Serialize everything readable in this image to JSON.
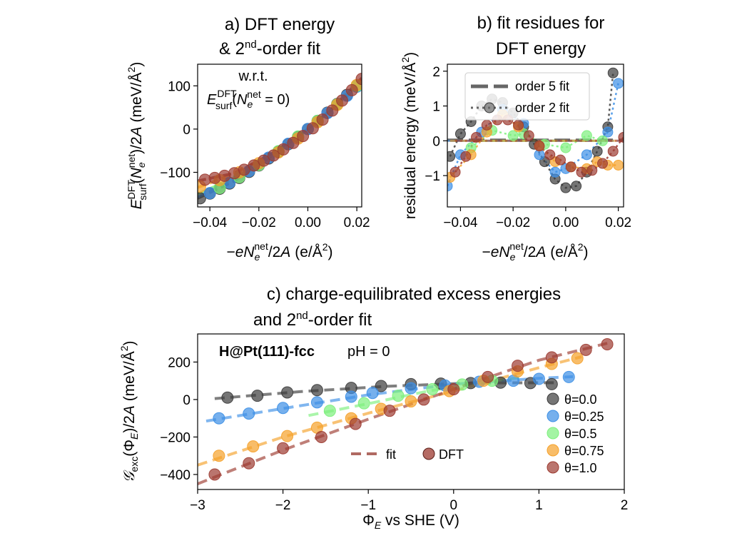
{
  "chart_data": [
    {
      "id": "a",
      "type": "scatter",
      "title": [
        "a) DFT energy",
        "& 2nd-order fit"
      ],
      "xlabel": "−eNe^net/2A (e/Å^2)",
      "ylabel": "E_surf^DFT(Ne^net)/2A (meV/Å^2)",
      "annotation": [
        "w.r.t.",
        "E_surf^DFT(Ne^net = 0)"
      ],
      "xlim": [
        -0.045,
        0.022
      ],
      "ylim": [
        -180,
        150
      ],
      "xticks": [
        -0.04,
        -0.02,
        0.0,
        0.02
      ],
      "xtick_labels": [
        "−0.04",
        "−0.02",
        "0.00",
        "0.02"
      ],
      "yticks": [
        -100,
        0,
        100
      ],
      "ytick_labels": [
        "−100",
        "0",
        "100"
      ],
      "grid": false,
      "series": [
        {
          "name": "θ=0.0",
          "color": "#3a3a3a",
          "x": [
            -0.044,
            -0.04,
            -0.036,
            -0.032,
            -0.028,
            -0.024,
            -0.02,
            -0.016,
            -0.012,
            -0.008,
            -0.004,
            0.0,
            0.004,
            0.008,
            0.012,
            0.016,
            0.02
          ],
          "y": [
            -160,
            -149,
            -138,
            -126,
            -113,
            -99,
            -84,
            -68,
            -52,
            -35,
            -18,
            0,
            19,
            38,
            58,
            79,
            100
          ]
        },
        {
          "name": "θ=0.25",
          "color": "#3c8fe6",
          "x": [
            -0.04,
            -0.032,
            -0.024,
            -0.016,
            -0.008,
            0.0,
            0.008,
            0.016,
            0.02
          ],
          "y": [
            -148,
            -124,
            -97,
            -66,
            -34,
            0,
            37,
            77,
            98
          ]
        },
        {
          "name": "θ=0.5",
          "color": "#7cf07c",
          "x": [
            -0.036,
            -0.028,
            -0.02,
            -0.012,
            -0.004,
            0.004,
            0.012,
            0.02
          ],
          "y": [
            -136,
            -111,
            -83,
            -51,
            -17,
            19,
            57,
            100
          ]
        },
        {
          "name": "θ=0.75",
          "color": "#f5a12a",
          "x": [
            -0.044,
            -0.036,
            -0.028,
            -0.02,
            -0.012,
            -0.004,
            0.004,
            0.012,
            0.02
          ],
          "y": [
            -133,
            -118,
            -100,
            -79,
            -54,
            -22,
            16,
            56,
            102
          ]
        },
        {
          "name": "θ=1.0",
          "color": "#9c3a30",
          "x": [
            -0.042,
            -0.038,
            -0.034,
            -0.03,
            -0.026,
            -0.022,
            -0.018,
            -0.014,
            -0.01,
            -0.006,
            -0.002,
            0.002,
            0.006,
            0.01,
            0.014,
            0.018,
            0.022
          ],
          "y": [
            -117,
            -113,
            -108,
            -102,
            -94,
            -84,
            -73,
            -61,
            -47,
            -32,
            -16,
            2,
            22,
            43,
            66,
            90,
            116
          ]
        }
      ],
      "fit_curves": [
        {
          "color": "#3a3a3a",
          "x": [
            -0.045,
            -0.03,
            -0.015,
            0.0,
            0.01,
            0.022
          ],
          "y": [
            -160,
            -120,
            -63,
            0,
            46,
            108
          ]
        },
        {
          "color": "#3c8fe6",
          "x": [
            -0.045,
            -0.03,
            -0.015,
            0.0,
            0.01,
            0.022
          ],
          "y": [
            -157,
            -118,
            -61,
            0,
            47,
            110
          ]
        },
        {
          "color": "#7cf07c",
          "x": [
            -0.045,
            -0.03,
            -0.015,
            0.0,
            0.01,
            0.022
          ],
          "y": [
            -150,
            -113,
            -60,
            0,
            47,
            112
          ]
        },
        {
          "color": "#f5a12a",
          "x": [
            -0.045,
            -0.03,
            -0.015,
            0.0,
            0.01,
            0.022
          ],
          "y": [
            -135,
            -104,
            -58,
            0,
            47,
            114
          ]
        },
        {
          "color": "#9c3a30",
          "x": [
            -0.045,
            -0.03,
            -0.015,
            0.0,
            0.01,
            0.022
          ],
          "y": [
            -120,
            -102,
            -58,
            0,
            48,
            118
          ]
        }
      ]
    },
    {
      "id": "b",
      "type": "scatter",
      "title": [
        "b) fit residues for",
        "DFT energy"
      ],
      "xlabel": "−eNe^net/2A (e/Å^2)",
      "ylabel": "residual energy (meV/Å^2)",
      "xlim": [
        -0.045,
        0.022
      ],
      "ylim": [
        -1.9,
        2.2
      ],
      "xticks": [
        -0.04,
        -0.02,
        0.0,
        0.02
      ],
      "xtick_labels": [
        "−0.04",
        "−0.02",
        "0.00",
        "0.02"
      ],
      "yticks": [
        -1,
        0,
        1,
        2
      ],
      "ytick_labels": [
        "−1",
        "0",
        "1",
        "2"
      ],
      "grid": false,
      "legend": {
        "position": "upper-left",
        "entries": [
          {
            "label": "order 5 fit",
            "style": "dashed"
          },
          {
            "label": "order 2 fit",
            "style": "dotted-marker"
          }
        ]
      },
      "series": [
        {
          "name": "θ=0.0",
          "color": "#3a3a3a",
          "x": [
            -0.044,
            -0.04,
            -0.036,
            -0.032,
            -0.028,
            -0.024,
            -0.02,
            -0.016,
            -0.012,
            -0.008,
            -0.004,
            0.0,
            0.004,
            0.008,
            0.012,
            0.016,
            0.018
          ],
          "y": [
            -0.45,
            0.2,
            0.55,
            1.0,
            1.2,
            1.1,
            0.8,
            0.4,
            -0.1,
            -0.6,
            -1.1,
            -1.35,
            -1.3,
            -0.9,
            -0.3,
            0.4,
            1.95
          ]
        },
        {
          "name": "θ=0.25",
          "color": "#3c8fe6",
          "x": [
            -0.045,
            -0.04,
            -0.032,
            -0.024,
            -0.016,
            -0.01,
            -0.004,
            0.0,
            0.008,
            0.016,
            0.02
          ],
          "y": [
            -1.3,
            -0.4,
            0.25,
            0.9,
            0.5,
            -0.4,
            -0.9,
            -0.8,
            -0.4,
            0.25,
            1.65
          ]
        },
        {
          "name": "θ=0.5",
          "color": "#7cf07c",
          "x": [
            -0.036,
            -0.028,
            -0.02,
            -0.016,
            -0.008,
            0.0,
            0.008,
            0.014
          ],
          "y": [
            -0.2,
            0.3,
            0.15,
            0.2,
            -0.1,
            -0.2,
            0.15,
            0.0
          ]
        },
        {
          "name": "θ=0.75",
          "color": "#f5a12a",
          "x": [
            -0.044,
            -0.036,
            -0.03,
            -0.024,
            -0.018,
            -0.01,
            -0.004,
            0.002,
            0.008,
            0.012,
            0.016,
            0.02
          ],
          "y": [
            -1.05,
            -0.4,
            0.25,
            0.75,
            0.4,
            -0.15,
            -0.6,
            -0.75,
            -0.8,
            -0.6,
            -0.7,
            -0.7
          ]
        },
        {
          "name": "θ=1.0",
          "color": "#9c3a30",
          "x": [
            -0.042,
            -0.038,
            -0.034,
            -0.03,
            -0.026,
            -0.022,
            -0.018,
            -0.014,
            -0.01,
            -0.006,
            -0.002,
            0.002,
            0.006,
            0.01,
            0.014,
            0.018,
            0.022
          ],
          "y": [
            -0.9,
            -0.45,
            0.1,
            0.45,
            0.6,
            0.6,
            0.45,
            0.15,
            -0.15,
            -0.4,
            -0.55,
            -0.75,
            -0.9,
            -0.85,
            -0.65,
            -0.3,
            0.1
          ]
        }
      ]
    },
    {
      "id": "c",
      "type": "scatter",
      "title": [
        "c) charge-equilibrated excess energies",
        "and 2nd-order fit"
      ],
      "xlabel": "ΦE vs SHE (V)",
      "ylabel": "Gexc(ΦE)/2A (meV/Å^2)",
      "annotation": [
        "H@Pt(111)-fcc",
        "pH = 0"
      ],
      "xlim": [
        -3,
        2
      ],
      "ylim": [
        -480,
        350
      ],
      "xticks": [
        -3,
        -2,
        -1,
        0,
        1,
        2
      ],
      "xtick_labels": [
        "−3",
        "−2",
        "−1",
        "0",
        "1",
        "2"
      ],
      "yticks": [
        -400,
        -200,
        0,
        200
      ],
      "ytick_labels": [
        "−400",
        "−200",
        "0",
        "200"
      ],
      "grid": false,
      "legend_series": [
        "θ=0.0",
        "θ=0.25",
        "θ=0.5",
        "θ=0.75",
        "θ=1.0"
      ],
      "legend_style": [
        {
          "label": "fit",
          "style": "dashed"
        },
        {
          "label": "DFT",
          "style": "marker"
        }
      ],
      "series": [
        {
          "name": "θ=0.0",
          "color": "#3a3a3a",
          "x": [
            -2.65,
            -2.3,
            -1.95,
            -1.6,
            -1.2,
            -0.85,
            -0.5,
            -0.15,
            0.2,
            0.55,
            0.9,
            1.15
          ],
          "y": [
            10,
            20,
            38,
            50,
            62,
            72,
            82,
            85,
            88,
            90,
            88,
            82
          ]
        },
        {
          "name": "θ=0.25",
          "color": "#3c8fe6",
          "x": [
            -2.75,
            -2.4,
            -2.0,
            -1.6,
            -1.2,
            -0.95,
            -0.5,
            -0.1,
            0.3,
            0.7,
            1.0,
            1.35
          ],
          "y": [
            -100,
            -75,
            -45,
            -15,
            15,
            35,
            60,
            75,
            95,
            100,
            110,
            120
          ]
        },
        {
          "name": "θ=0.5",
          "color": "#7cf07c",
          "x": [
            -1.45,
            -1.05,
            -0.65,
            -0.25,
            0.1,
            0.45
          ],
          "y": [
            -60,
            -20,
            20,
            55,
            80,
            100
          ]
        },
        {
          "name": "θ=0.75",
          "color": "#f5a12a",
          "x": [
            -2.75,
            -2.35,
            -1.95,
            -1.6,
            -1.2,
            -0.85,
            -0.5,
            -0.05,
            0.35,
            0.75,
            1.15,
            1.45
          ],
          "y": [
            -300,
            -250,
            -195,
            -150,
            -100,
            -50,
            -10,
            45,
            100,
            150,
            190,
            220
          ]
        },
        {
          "name": "θ=1.0",
          "color": "#9c3a30",
          "x": [
            -2.8,
            -2.4,
            -2.0,
            -1.55,
            -1.15,
            -0.75,
            -0.35,
            0.0,
            0.4,
            0.75,
            1.15,
            1.55,
            1.8
          ],
          "y": [
            -400,
            -340,
            -260,
            -200,
            -130,
            -60,
            0,
            55,
            120,
            180,
            225,
            265,
            295
          ]
        }
      ],
      "fit_curves": [
        {
          "color": "#3a3a3a",
          "x": [
            -2.8,
            -1.8,
            -0.8,
            0.2,
            1.2
          ],
          "y": [
            5,
            42,
            70,
            88,
            90
          ]
        },
        {
          "color": "#3c8fe6",
          "x": [
            -2.9,
            -2.0,
            -1.0,
            0.0,
            1.0,
            1.4
          ],
          "y": [
            -115,
            -48,
            25,
            82,
            113,
            122
          ]
        },
        {
          "color": "#7cf07c",
          "x": [
            -1.7,
            -1.0,
            -0.3,
            0.4,
            0.8
          ],
          "y": [
            -85,
            -22,
            45,
            96,
            118
          ]
        },
        {
          "color": "#f5a12a",
          "x": [
            -3.0,
            -2.0,
            -1.0,
            0.0,
            1.0,
            1.5
          ],
          "y": [
            -350,
            -200,
            -73,
            45,
            170,
            228
          ]
        },
        {
          "color": "#9c3a30",
          "x": [
            -3.0,
            -2.0,
            -1.0,
            0.0,
            1.0,
            1.8
          ],
          "y": [
            -450,
            -270,
            -105,
            55,
            210,
            300
          ]
        }
      ]
    }
  ]
}
